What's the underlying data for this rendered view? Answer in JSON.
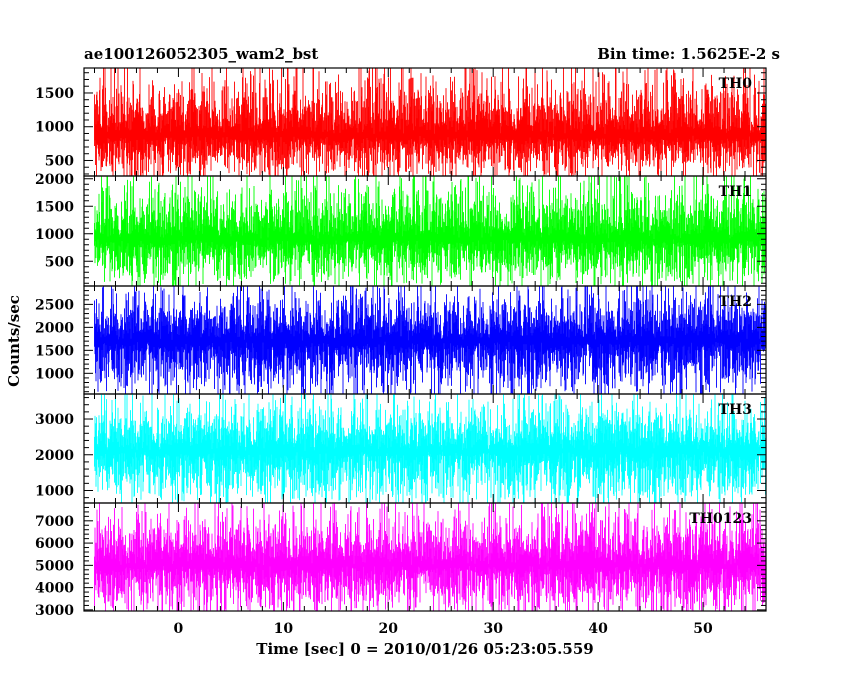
{
  "header": {
    "left_title": "ae100126052305_wam2_bst",
    "right_title": "Bin time: 1.5625E-2 s"
  },
  "chart_data": {
    "type": "line",
    "xlabel": "Time [sec] 0 = 2010/01/26 05:23:05.559",
    "ylabel": "Counts/sec",
    "xlim": [
      -9,
      56
    ],
    "x_ticks": [
      0,
      10,
      20,
      30,
      40,
      50
    ],
    "x_minor_step": 2,
    "x_data_range": [
      -8,
      56
    ],
    "bin_time": 0.015625,
    "panels": [
      {
        "name": "TH0",
        "color": "#ff0000",
        "ylim": [
          270,
          1870
        ],
        "y_ticks": [
          500,
          1000,
          1500
        ],
        "y_minor_step": 100,
        "mean": 870,
        "min_level": 320,
        "max_level": 1860
      },
      {
        "name": "TH1",
        "color": "#00ff00",
        "ylim": [
          50,
          2050
        ],
        "y_ticks": [
          500,
          1000,
          1500,
          2000
        ],
        "y_minor_step": 100,
        "mean": 900,
        "min_level": 150,
        "max_level": 2000
      },
      {
        "name": "TH2",
        "color": "#0000ff",
        "ylim": [
          550,
          2900
        ],
        "y_ticks": [
          1000,
          1500,
          2000,
          2500
        ],
        "y_minor_step": 100,
        "mean": 1700,
        "min_level": 650,
        "max_level": 2850
      },
      {
        "name": "TH3",
        "color": "#00ffff",
        "ylim": [
          650,
          3700
        ],
        "y_ticks": [
          1000,
          2000,
          3000
        ],
        "y_minor_step": 200,
        "mean": 2100,
        "min_level": 750,
        "max_level": 3600
      },
      {
        "name": "TH0123",
        "color": "#ff00ff",
        "ylim": [
          2950,
          7800
        ],
        "y_ticks": [
          3000,
          4000,
          5000,
          6000,
          7000
        ],
        "y_minor_step": 200,
        "mean": 5000,
        "min_level": 3000,
        "max_level": 7700
      }
    ]
  }
}
